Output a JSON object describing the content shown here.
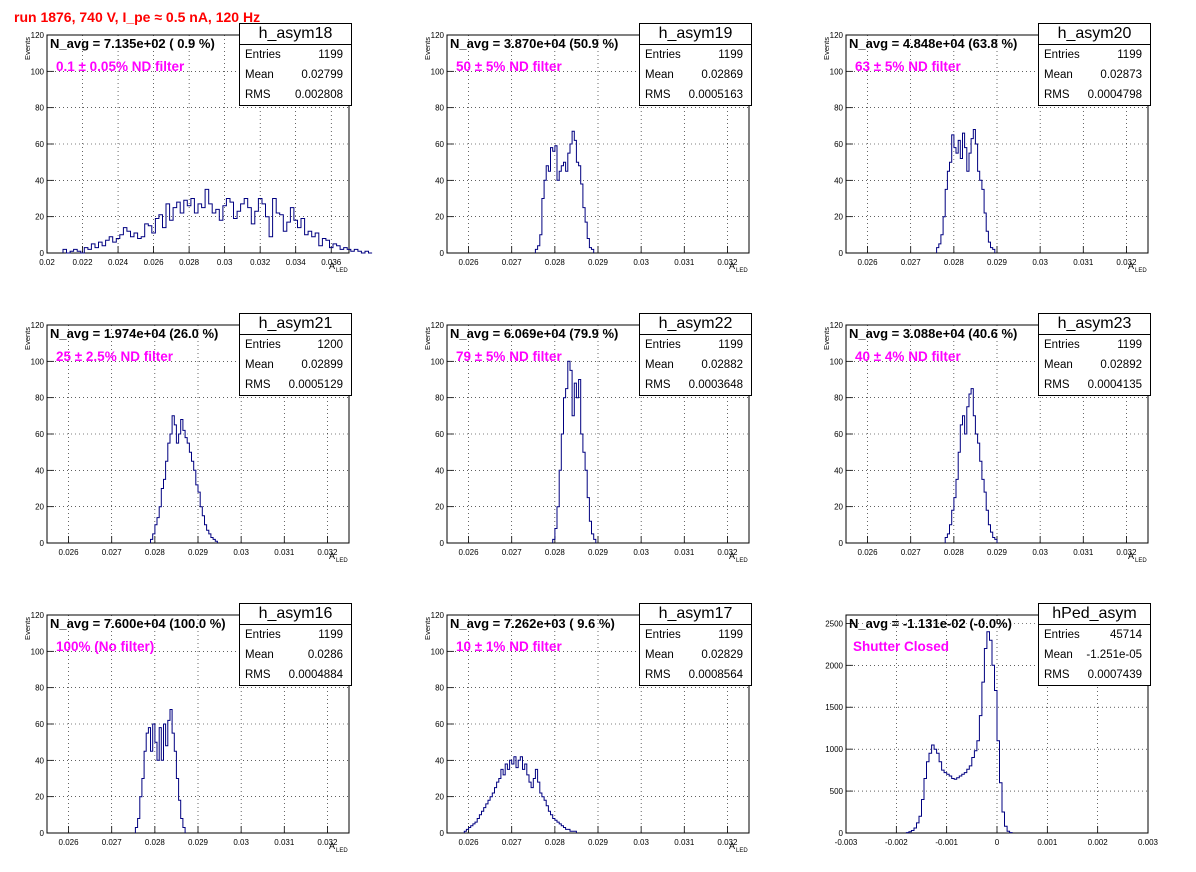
{
  "page": {
    "title": "run 1876,   740 V, I_pe ≈ 0.5 nA, 120 Hz",
    "title_color": "#ff0000"
  },
  "colors": {
    "hist": "#000080",
    "note": "#ff00ff",
    "grid": "#000000"
  },
  "stat_labels": {
    "entries": "Entries",
    "mean": "Mean",
    "rms": "RMS"
  },
  "chart_data": [
    {
      "type": "histogram",
      "name": "h_asym18",
      "n_avg": "N_avg = 7.135e+02 ( 0.9 %)",
      "note": "0.1 ± 0.05% ND filter",
      "stats": {
        "entries": "1199",
        "mean": "0.02799",
        "rms": "0.002808"
      },
      "xlim": [
        0.02,
        0.037
      ],
      "ylim": [
        0,
        120
      ],
      "grid": true,
      "xticks": [
        0.02,
        0.022,
        0.024,
        0.026,
        0.028,
        0.03,
        0.032,
        0.034,
        0.036
      ],
      "xticklabels": [
        "0.02",
        "0.022",
        "0.024",
        "0.026",
        "0.028",
        "0.03",
        "0.032",
        "0.034",
        "0.036"
      ],
      "yticks": [
        0,
        20,
        40,
        60,
        80,
        100,
        120
      ],
      "yticklabels": [
        "0",
        "20",
        "40",
        "60",
        "80",
        "100",
        "120"
      ],
      "xlabel": "A",
      "xlabel_sub": "LED",
      "ylabel": "Events",
      "bins": {
        "start": 0.0209,
        "width": 0.0002,
        "counts": [
          2,
          0,
          1,
          2,
          1,
          0,
          3,
          2,
          5,
          3,
          6,
          4,
          7,
          9,
          6,
          8,
          10,
          14,
          12,
          9,
          11,
          8,
          9,
          16,
          15,
          11,
          19,
          21,
          14,
          27,
          18,
          25,
          28,
          22,
          29,
          26,
          30,
          22,
          27,
          25,
          35,
          27,
          22,
          24,
          18,
          26,
          30,
          28,
          19,
          23,
          27,
          30,
          25,
          16,
          23,
          30,
          27,
          20,
          9,
          30,
          22,
          21,
          12,
          17,
          25,
          18,
          14,
          19,
          10,
          12,
          9,
          11,
          4,
          8,
          7,
          3,
          5,
          4,
          2,
          3,
          2,
          1,
          2,
          1,
          0,
          1,
          0
        ]
      }
    },
    {
      "type": "histogram",
      "name": "h_asym19",
      "n_avg": "N_avg = 3.870e+04 (50.9 %)",
      "note": "50 ± 5% ND filter",
      "stats": {
        "entries": "1199",
        "mean": "0.02869",
        "rms": "0.0005163"
      },
      "xlim": [
        0.0255,
        0.0325
      ],
      "ylim": [
        0,
        120
      ],
      "grid": true,
      "xticks": [
        0.026,
        0.027,
        0.028,
        0.029,
        0.03,
        0.031,
        0.032
      ],
      "xticklabels": [
        "0.026",
        "0.027",
        "0.028",
        "0.029",
        "0.03",
        "0.031",
        "0.032"
      ],
      "yticks": [
        0,
        20,
        40,
        60,
        80,
        100,
        120
      ],
      "yticklabels": [
        "0",
        "20",
        "40",
        "60",
        "80",
        "100",
        "120"
      ],
      "xlabel": "A",
      "xlabel_sub": "LED",
      "ylabel": "Events",
      "bins": {
        "start": 0.02755,
        "width": 5e-05,
        "counts": [
          2,
          4,
          10,
          30,
          40,
          48,
          45,
          58,
          56,
          59,
          40,
          45,
          48,
          50,
          45,
          55,
          60,
          67,
          62,
          50,
          48,
          38,
          25,
          17,
          8,
          3,
          2
        ]
      }
    },
    {
      "type": "histogram",
      "name": "h_asym20",
      "n_avg": "N_avg = 4.848e+04 (63.8 %)",
      "note": "63 ± 5% ND filter",
      "stats": {
        "entries": "1199",
        "mean": "0.02873",
        "rms": "0.0004798"
      },
      "xlim": [
        0.0255,
        0.0325
      ],
      "ylim": [
        0,
        120
      ],
      "grid": true,
      "xticks": [
        0.026,
        0.027,
        0.028,
        0.029,
        0.03,
        0.031,
        0.032
      ],
      "xticklabels": [
        "0.026",
        "0.027",
        "0.028",
        "0.029",
        "0.03",
        "0.031",
        "0.032"
      ],
      "yticks": [
        0,
        20,
        40,
        60,
        80,
        100,
        120
      ],
      "yticklabels": [
        "0",
        "20",
        "40",
        "60",
        "80",
        "100",
        "120"
      ],
      "xlabel": "A",
      "xlabel_sub": "LED",
      "ylabel": "Events",
      "bins": {
        "start": 0.0276,
        "width": 5e-05,
        "counts": [
          3,
          5,
          10,
          20,
          35,
          45,
          50,
          65,
          58,
          55,
          62,
          52,
          66,
          58,
          45,
          55,
          63,
          68,
          60,
          45,
          40,
          35,
          22,
          12,
          6,
          3,
          2
        ]
      }
    },
    {
      "type": "histogram",
      "name": "h_asym21",
      "n_avg": "N_avg = 1.974e+04 (26.0 %)",
      "note": "25 ± 2.5% ND filter",
      "stats": {
        "entries": "1200",
        "mean": "0.02899",
        "rms": "0.0005129"
      },
      "xlim": [
        0.0255,
        0.0325
      ],
      "ylim": [
        0,
        120
      ],
      "grid": true,
      "xticks": [
        0.026,
        0.027,
        0.028,
        0.029,
        0.03,
        0.031,
        0.032
      ],
      "xticklabels": [
        "0.026",
        "0.027",
        "0.028",
        "0.029",
        "0.03",
        "0.031",
        "0.032"
      ],
      "yticks": [
        0,
        20,
        40,
        60,
        80,
        100,
        120
      ],
      "yticklabels": [
        "0",
        "20",
        "40",
        "60",
        "80",
        "100",
        "120"
      ],
      "xlabel": "A",
      "xlabel_sub": "LED",
      "ylabel": "Events",
      "bins": {
        "start": 0.0279,
        "width": 5e-05,
        "counts": [
          2,
          5,
          10,
          14,
          20,
          30,
          35,
          45,
          55,
          60,
          70,
          65,
          55,
          60,
          68,
          62,
          58,
          55,
          50,
          45,
          40,
          32,
          28,
          20,
          15,
          10,
          7,
          5,
          3,
          2,
          1
        ]
      }
    },
    {
      "type": "histogram",
      "name": "h_asym22",
      "n_avg": "N_avg = 6.069e+04 (79.9 %)",
      "note": "79 ± 5% ND filter",
      "stats": {
        "entries": "1199",
        "mean": "0.02882",
        "rms": "0.0003648"
      },
      "xlim": [
        0.0255,
        0.0325
      ],
      "ylim": [
        0,
        120
      ],
      "grid": true,
      "xticks": [
        0.026,
        0.027,
        0.028,
        0.029,
        0.03,
        0.031,
        0.032
      ],
      "xticklabels": [
        "0.026",
        "0.027",
        "0.028",
        "0.029",
        "0.03",
        "0.031",
        "0.032"
      ],
      "yticks": [
        0,
        20,
        40,
        60,
        80,
        100,
        120
      ],
      "yticklabels": [
        "0",
        "20",
        "40",
        "60",
        "80",
        "100",
        "120"
      ],
      "xlabel": "A",
      "xlabel_sub": "LED",
      "ylabel": "Events",
      "bins": {
        "start": 0.02795,
        "width": 5e-05,
        "counts": [
          2,
          8,
          20,
          40,
          60,
          80,
          85,
          100,
          95,
          70,
          88,
          80,
          90,
          60,
          50,
          40,
          25,
          12,
          5,
          2
        ]
      }
    },
    {
      "type": "histogram",
      "name": "h_asym23",
      "n_avg": "N_avg = 3.088e+04 (40.6 %)",
      "note": "40 ± 4% ND filter",
      "stats": {
        "entries": "1199",
        "mean": "0.02892",
        "rms": "0.0004135"
      },
      "xlim": [
        0.0255,
        0.0325
      ],
      "ylim": [
        0,
        120
      ],
      "grid": true,
      "xticks": [
        0.026,
        0.027,
        0.028,
        0.029,
        0.03,
        0.031,
        0.032
      ],
      "xticklabels": [
        "0.026",
        "0.027",
        "0.028",
        "0.029",
        "0.03",
        "0.031",
        "0.032"
      ],
      "yticks": [
        0,
        20,
        40,
        60,
        80,
        100,
        120
      ],
      "yticklabels": [
        "0",
        "20",
        "40",
        "60",
        "80",
        "100",
        "120"
      ],
      "xlabel": "A",
      "xlabel_sub": "LED",
      "ylabel": "Events",
      "bins": {
        "start": 0.0278,
        "width": 5e-05,
        "counts": [
          3,
          5,
          10,
          18,
          25,
          35,
          50,
          65,
          70,
          60,
          75,
          82,
          85,
          70,
          60,
          55,
          45,
          35,
          28,
          18,
          10,
          6,
          3,
          2
        ]
      }
    },
    {
      "type": "histogram",
      "name": "h_asym16",
      "n_avg": "N_avg = 7.600e+04 (100.0 %)",
      "note": "100% (No filter)",
      "stats": {
        "entries": "1199",
        "mean": "0.0286",
        "rms": "0.0004884"
      },
      "xlim": [
        0.0255,
        0.0325
      ],
      "ylim": [
        0,
        120
      ],
      "grid": true,
      "xticks": [
        0.026,
        0.027,
        0.028,
        0.029,
        0.03,
        0.031,
        0.032
      ],
      "xticklabels": [
        "0.026",
        "0.027",
        "0.028",
        "0.029",
        "0.03",
        "0.031",
        "0.032"
      ],
      "yticks": [
        0,
        20,
        40,
        60,
        80,
        100,
        120
      ],
      "yticklabels": [
        "0",
        "20",
        "40",
        "60",
        "80",
        "100",
        "120"
      ],
      "xlabel": "A",
      "xlabel_sub": "LED",
      "ylabel": "Events",
      "bins": {
        "start": 0.02755,
        "width": 5e-05,
        "counts": [
          3,
          8,
          20,
          30,
          45,
          55,
          58,
          45,
          60,
          50,
          40,
          58,
          40,
          60,
          48,
          62,
          68,
          55,
          45,
          30,
          18,
          8,
          3
        ]
      }
    },
    {
      "type": "histogram",
      "name": "h_asym17",
      "n_avg": "N_avg = 7.262e+03 ( 9.6 %)",
      "note": "10 ± 1% ND filter",
      "stats": {
        "entries": "1199",
        "mean": "0.02829",
        "rms": "0.0008564"
      },
      "xlim": [
        0.0255,
        0.0325
      ],
      "ylim": [
        0,
        120
      ],
      "grid": true,
      "xticks": [
        0.026,
        0.027,
        0.028,
        0.029,
        0.03,
        0.031,
        0.032
      ],
      "xticklabels": [
        "0.026",
        "0.027",
        "0.028",
        "0.029",
        "0.03",
        "0.031",
        "0.032"
      ],
      "yticks": [
        0,
        20,
        40,
        60,
        80,
        100,
        120
      ],
      "yticklabels": [
        "0",
        "20",
        "40",
        "60",
        "80",
        "100",
        "120"
      ],
      "xlabel": "A",
      "xlabel_sub": "LED",
      "ylabel": "Events",
      "bins": {
        "start": 0.0259,
        "width": 5e-05,
        "counts": [
          1,
          2,
          3,
          4,
          5,
          6,
          8,
          10,
          12,
          14,
          16,
          18,
          20,
          22,
          25,
          28,
          30,
          35,
          32,
          38,
          35,
          40,
          38,
          42,
          36,
          40,
          42,
          35,
          38,
          32,
          28,
          25,
          30,
          35,
          28,
          22,
          20,
          18,
          15,
          12,
          10,
          8,
          7,
          6,
          5,
          4,
          3,
          2,
          2,
          1,
          1,
          1
        ]
      }
    },
    {
      "type": "histogram",
      "name": "hPed_asym",
      "n_avg": "N_avg = -1.131e-02 (-0.0%)",
      "note": "Shutter Closed",
      "stats": {
        "entries": "45714",
        "mean": "-1.251e-05",
        "rms": "0.0007439"
      },
      "xlim": [
        -0.003,
        0.003
      ],
      "ylim": [
        0,
        2600
      ],
      "grid": true,
      "xticks": [
        -0.003,
        -0.002,
        -0.001,
        0,
        0.001,
        0.002,
        0.003
      ],
      "xticklabels": [
        "-0.003",
        "-0.002",
        "-0.001",
        "0",
        "0.001",
        "0.002",
        "0.003"
      ],
      "yticks": [
        0,
        500,
        1000,
        1500,
        2000,
        2500
      ],
      "yticklabels": [
        "0",
        "500",
        "1000",
        "1500",
        "2000",
        "2500"
      ],
      "xlabel": "",
      "xlabel_sub": "",
      "ylabel": "",
      "bins": {
        "start": -0.0018,
        "width": 5e-05,
        "counts": [
          5,
          15,
          30,
          60,
          120,
          200,
          400,
          650,
          850,
          950,
          1050,
          1000,
          950,
          850,
          750,
          720,
          700,
          680,
          650,
          640,
          660,
          680,
          700,
          720,
          760,
          800,
          900,
          980,
          1100,
          1400,
          1800,
          2200,
          2400,
          2300,
          2000,
          1700,
          1100,
          600,
          250,
          80,
          20,
          5
        ]
      }
    }
  ]
}
